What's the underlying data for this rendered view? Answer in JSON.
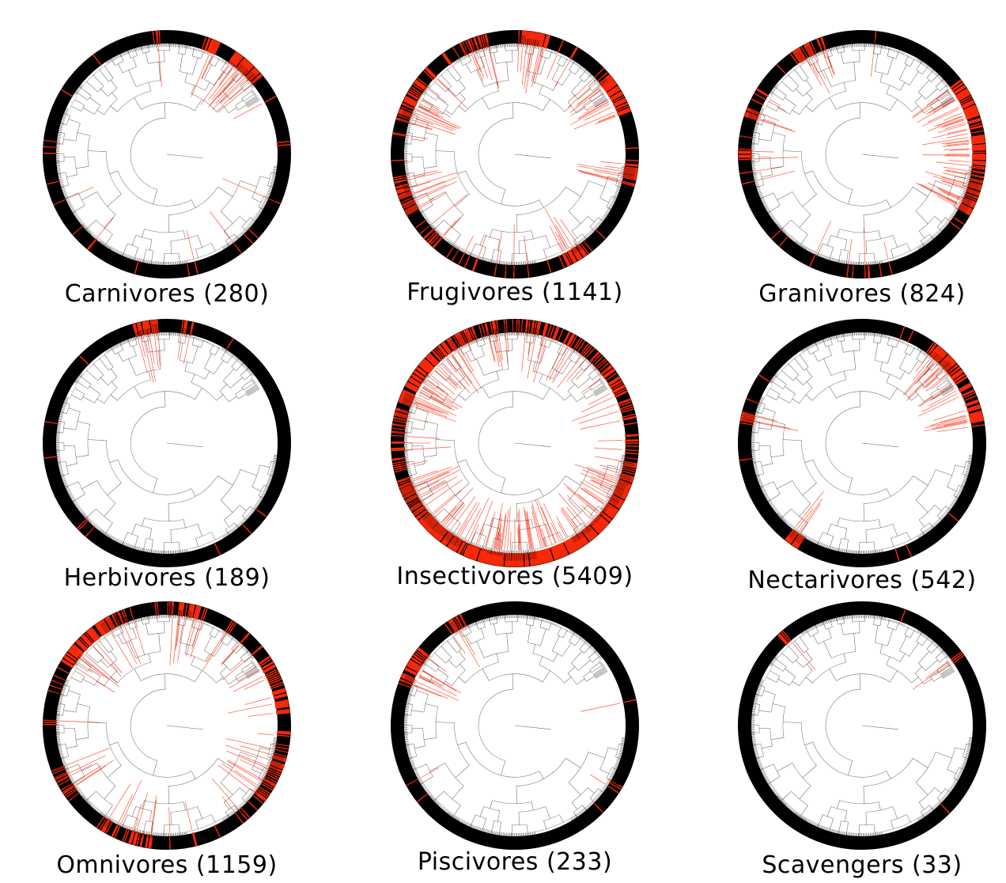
{
  "figure": {
    "colors": {
      "ring": "#000000",
      "highlight": "#ff2a0a",
      "branch": "#000000",
      "inner_ring": "#ffffff",
      "background": "#ffffff"
    },
    "panels": [
      {
        "label": "Carnivores (280)",
        "seed": 11,
        "density": 0.03,
        "hotspots": [
          [
            22,
            8,
            0.6
          ],
          [
            42,
            18,
            0.9
          ],
          [
            85,
            4,
            0.5
          ],
          [
            355,
            4,
            0.7
          ]
        ]
      },
      {
        "label": "Frugivores (1141)",
        "seed": 23,
        "density": 0.06,
        "hotspots": [
          [
            10,
            14,
            0.8
          ],
          [
            60,
            20,
            0.8
          ],
          [
            100,
            12,
            0.9
          ],
          [
            150,
            14,
            0.6
          ],
          [
            250,
            20,
            0.7
          ],
          [
            300,
            30,
            0.6
          ],
          [
            340,
            14,
            0.6
          ],
          [
            225,
            10,
            0.6
          ]
        ]
      },
      {
        "label": "Granivores (824)",
        "seed": 37,
        "density": 0.05,
        "hotspots": [
          [
            65,
            25,
            0.8
          ],
          [
            100,
            40,
            0.8
          ],
          [
            330,
            12,
            0.7
          ],
          [
            270,
            6,
            0.7
          ],
          [
            290,
            6,
            0.6
          ]
        ]
      },
      {
        "label": "Herbivores (189)",
        "seed": 41,
        "density": 0.015,
        "hotspots": [
          [
            350,
            12,
            0.9
          ],
          [
            10,
            6,
            0.6
          ]
        ]
      },
      {
        "label": "Insectivores (5409)",
        "seed": 53,
        "density": 0.35,
        "hotspots": [
          [
            180,
            140,
            0.92
          ],
          [
            300,
            40,
            0.8
          ],
          [
            320,
            40,
            0.7
          ],
          [
            60,
            30,
            0.45
          ],
          [
            120,
            40,
            0.55
          ],
          [
            20,
            20,
            0.4
          ]
        ]
      },
      {
        "label": "Nectarivores (542)",
        "seed": 67,
        "density": 0.03,
        "hotspots": [
          [
            42,
            14,
            0.95
          ],
          [
            55,
            14,
            0.6
          ],
          [
            215,
            8,
            0.8
          ],
          [
            282,
            6,
            0.7
          ],
          [
            70,
            20,
            0.5
          ]
        ]
      },
      {
        "label": "Omnivores (1159)",
        "seed": 79,
        "density": 0.1,
        "hotspots": [
          [
            320,
            40,
            0.7
          ],
          [
            10,
            20,
            0.6
          ],
          [
            70,
            30,
            0.55
          ],
          [
            115,
            30,
            0.6
          ],
          [
            200,
            30,
            0.5
          ],
          [
            240,
            20,
            0.5
          ]
        ]
      },
      {
        "label": "Piscivores (233)",
        "seed": 83,
        "density": 0.015,
        "hotspots": [
          [
            300,
            20,
            0.7
          ],
          [
            330,
            10,
            0.6
          ]
        ]
      },
      {
        "label": "Scavengers (33)",
        "seed": 97,
        "density": 0.004,
        "hotspots": [
          [
            55,
            4,
            0.6
          ],
          [
            318,
            3,
            0.5
          ]
        ]
      }
    ]
  }
}
